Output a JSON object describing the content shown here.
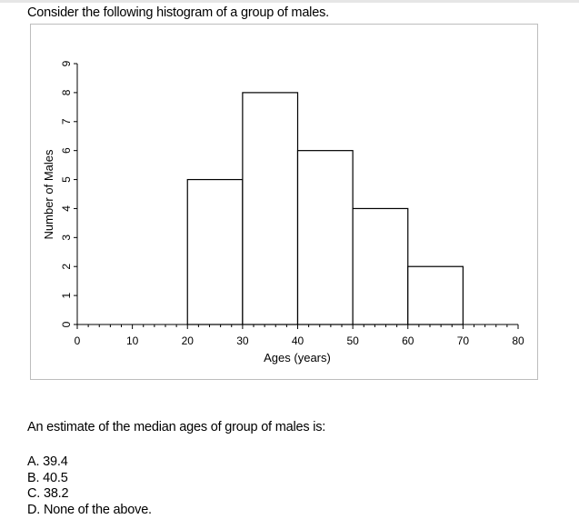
{
  "question": {
    "intro": "Consider the following histogram of a group of males.",
    "prompt": "An estimate of the median ages of group of males is:",
    "options": [
      {
        "letter": "A.",
        "text": "39.4"
      },
      {
        "letter": "B.",
        "text": "40.5"
      },
      {
        "letter": "C.",
        "text": "38.2"
      },
      {
        "letter": "D.",
        "text": "None of the above."
      }
    ]
  },
  "chart_data": {
    "type": "bar",
    "title": "",
    "xlabel": "Ages (years)",
    "ylabel": "Number of Males",
    "xlim": [
      0,
      80
    ],
    "ylim": [
      0,
      9
    ],
    "x_ticks": [
      0,
      10,
      20,
      30,
      40,
      50,
      60,
      70,
      80
    ],
    "y_ticks": [
      0,
      1,
      2,
      3,
      4,
      5,
      6,
      7,
      8,
      9
    ],
    "bins": [
      {
        "start": 20,
        "end": 30,
        "count": 5
      },
      {
        "start": 30,
        "end": 40,
        "count": 8
      },
      {
        "start": 40,
        "end": 50,
        "count": 6
      },
      {
        "start": 50,
        "end": 60,
        "count": 4
      },
      {
        "start": 60,
        "end": 70,
        "count": 2
      }
    ],
    "grid": false,
    "legend": "none",
    "colors": {
      "bar_fill": "#ffffff",
      "bar_stroke": "#000000",
      "axis": "#000000"
    }
  }
}
